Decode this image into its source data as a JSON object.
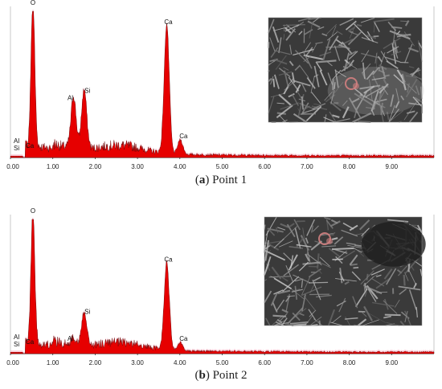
{
  "chart_data": [
    {
      "type": "area",
      "panel": "a",
      "caption_letter": "a",
      "caption_text": "Point 1",
      "x_ticks": [
        "0.00",
        "1.00",
        "2.00",
        "3.00",
        "4.00",
        "5.00",
        "6.00",
        "7.00",
        "8.00",
        "9.00"
      ],
      "xlim": [
        0,
        10
      ],
      "peaks": [
        {
          "element": "Al",
          "energy_keV": 0.1,
          "relative_intensity": 0.06
        },
        {
          "element": "Si",
          "energy_keV": 0.15,
          "relative_intensity": 0.03
        },
        {
          "element": "Ca",
          "energy_keV": 0.3,
          "relative_intensity": 0.03
        },
        {
          "element": "O",
          "energy_keV": 0.53,
          "relative_intensity": 1.0
        },
        {
          "element": "Al",
          "energy_keV": 1.49,
          "relative_intensity": 0.36
        },
        {
          "element": "Si",
          "energy_keV": 1.74,
          "relative_intensity": 0.41
        },
        {
          "element": "Ca",
          "energy_keV": 3.69,
          "relative_intensity": 0.88
        },
        {
          "element": "Ca",
          "energy_keV": 4.01,
          "relative_intensity": 0.1
        }
      ],
      "inset": "SEM micrograph"
    },
    {
      "type": "area",
      "panel": "b",
      "caption_letter": "b",
      "caption_text": "Point 2",
      "x_ticks": [
        "0.00",
        "1.00",
        "2.00",
        "3.00",
        "4.00",
        "5.00",
        "6.00",
        "7.00",
        "8.00",
        "9.00"
      ],
      "xlim": [
        0,
        10
      ],
      "peaks": [
        {
          "element": "Al",
          "energy_keV": 0.1,
          "relative_intensity": 0.06
        },
        {
          "element": "Si",
          "energy_keV": 0.15,
          "relative_intensity": 0.03
        },
        {
          "element": "Ca",
          "energy_keV": 0.3,
          "relative_intensity": 0.03
        },
        {
          "element": "O",
          "energy_keV": 0.53,
          "relative_intensity": 1.0
        },
        {
          "element": "Al",
          "energy_keV": 1.49,
          "relative_intensity": 0.06
        },
        {
          "element": "Si",
          "energy_keV": 1.74,
          "relative_intensity": 0.26
        },
        {
          "element": "Ca",
          "energy_keV": 3.69,
          "relative_intensity": 0.65
        },
        {
          "element": "Ca",
          "energy_keV": 4.01,
          "relative_intensity": 0.06
        }
      ],
      "inset": "SEM micrograph"
    }
  ],
  "colors": {
    "spectrum_fill": "#e60000",
    "spectrum_halo": "#f6a0b6",
    "spectrum_dark": "#5a0000",
    "axis": "#333333",
    "frame": "#c8c8c8",
    "sem_dark": "#3a3a3a",
    "sem_light": "#b8b8b8",
    "spot": "#d28080"
  }
}
